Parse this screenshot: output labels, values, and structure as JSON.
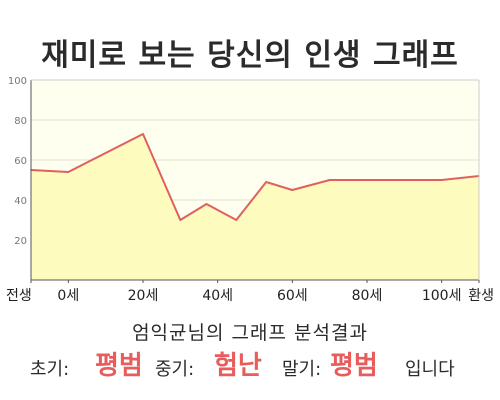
{
  "title": "재미로 보는 당신의 인생 그래프",
  "analysis": {
    "title": "엄익균님의 그래프 분석결과",
    "early_label": "초기:",
    "early_value": "평범",
    "middle_label": "중기:",
    "middle_value": "험난",
    "late_label": "말기:",
    "late_value": "평범",
    "closing": "입니다"
  },
  "colors": {
    "line": "#e06060",
    "area_fill": "#fdfbbe",
    "plot_background": "#fffff0",
    "grid": "#e0e0cc",
    "highlight_text": "#e85c5c"
  },
  "chart_data": {
    "type": "area",
    "title": "재미로 보는 당신의 인생 그래프",
    "xlabel": "",
    "ylabel": "",
    "x": [
      -10,
      0,
      20,
      30,
      37,
      45,
      53,
      60,
      70,
      80,
      90,
      100,
      110
    ],
    "values": [
      55,
      54,
      73,
      30,
      38,
      30,
      49,
      45,
      50,
      50,
      50,
      50,
      52
    ],
    "xlim": [
      -10,
      110
    ],
    "ylim": [
      0,
      100
    ],
    "x_ticks": [
      {
        "x": -10,
        "label": "전생"
      },
      {
        "x": 0,
        "label": "0세"
      },
      {
        "x": 20,
        "label": "20세"
      },
      {
        "x": 40,
        "label": "40세"
      },
      {
        "x": 60,
        "label": "60세"
      },
      {
        "x": 80,
        "label": "80세"
      },
      {
        "x": 100,
        "label": "100세"
      },
      {
        "x": 110,
        "label": "환생"
      }
    ],
    "y_ticks": [
      20,
      40,
      60,
      80,
      100
    ],
    "grid": true,
    "legend": "none"
  }
}
